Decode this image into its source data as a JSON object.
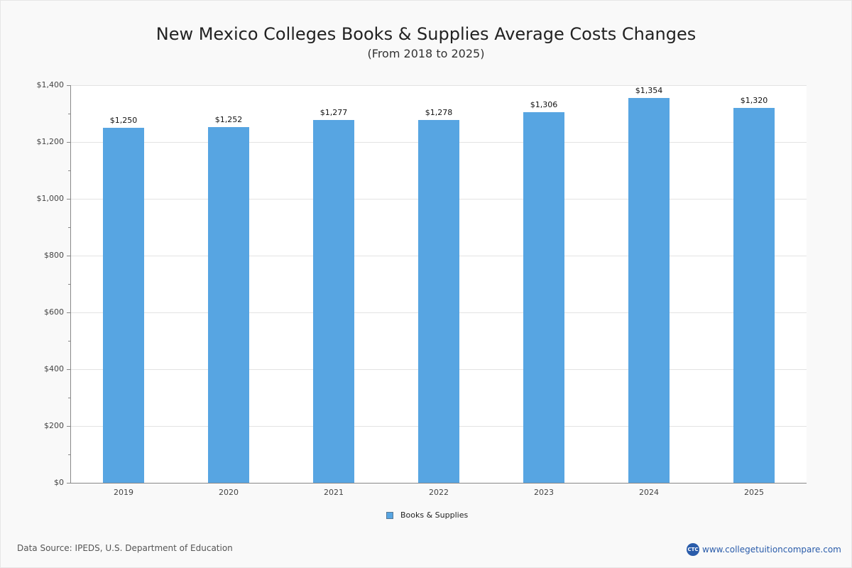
{
  "header": {
    "title": "New Mexico Colleges  Books & Supplies Average Costs Changes",
    "subtitle": "(From 2018 to 2025)"
  },
  "footer": {
    "source": "Data Source: IPEDS, U.S. Department of Education",
    "brand_logo": "CTC",
    "brand_url": "www.collegetuitioncompare.com"
  },
  "legend": {
    "label": "Books & Supplies"
  },
  "colors": {
    "bar": "#57a5e2",
    "background": "#f9f9f9",
    "plot": "#ffffff"
  },
  "chart_data": {
    "type": "bar",
    "title": "New Mexico Colleges  Books & Supplies Average Costs Changes",
    "subtitle": "(From 2018 to 2025)",
    "xlabel": "",
    "ylabel": "",
    "categories": [
      "2019",
      "2020",
      "2021",
      "2022",
      "2023",
      "2024",
      "2025"
    ],
    "series": [
      {
        "name": "Books & Supplies",
        "values": [
          1250,
          1252,
          1277,
          1278,
          1306,
          1354,
          1320
        ]
      }
    ],
    "data_labels": [
      "$1,250",
      "$1,252",
      "$1,277",
      "$1,278",
      "$1,306",
      "$1,354",
      "$1,320"
    ],
    "ylim": [
      0,
      1400
    ],
    "yticks": [
      "$0",
      "$200",
      "$400",
      "$600",
      "$800",
      "$1,000",
      "$1,200",
      "$1,400"
    ],
    "grid": true,
    "legend_position": "bottom"
  }
}
